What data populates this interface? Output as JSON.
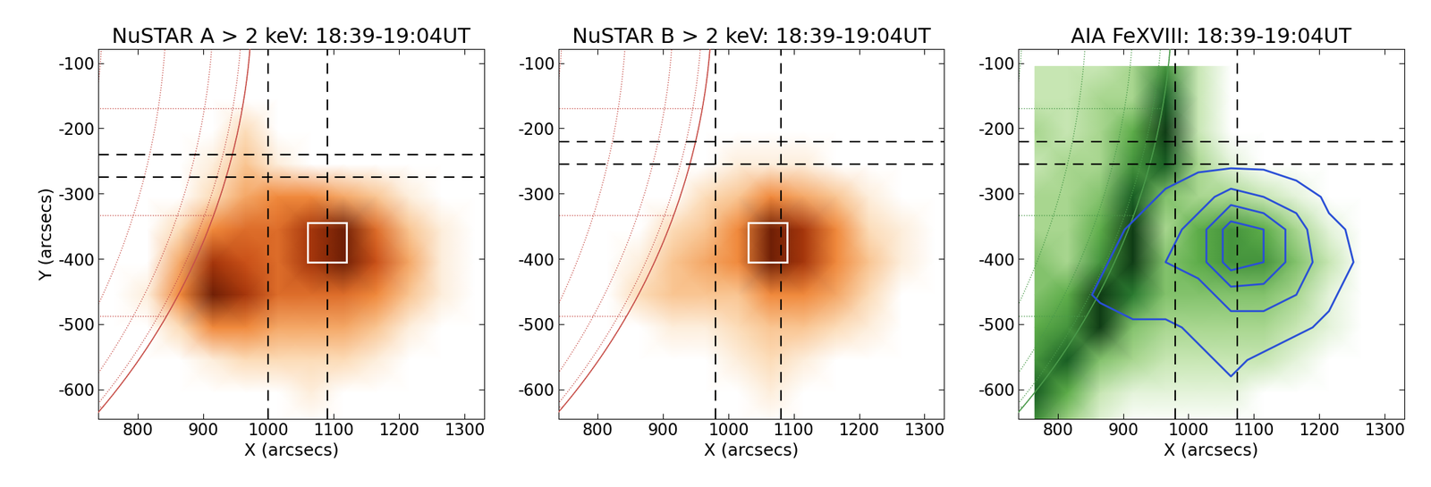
{
  "chart_data": [
    {
      "type": "image",
      "title": "NuSTAR A > 2 keV: 18:39-19:04UT",
      "x_label": "X (arcsecs)",
      "y_label": "Y (arcsecs)",
      "xlim": [
        740,
        1330
      ],
      "ylim": [
        -645,
        -78
      ],
      "xticks": [
        800,
        900,
        1000,
        1100,
        1200,
        1300
      ],
      "yticks": [
        -600,
        -500,
        -400,
        -300,
        -200,
        -100
      ],
      "x": [
        765,
        815,
        865,
        915,
        965,
        1015,
        1065,
        1115,
        1165,
        1215,
        1265,
        1315
      ],
      "y": [
        -105,
        -155,
        -205,
        -255,
        -305,
        -355,
        -405,
        -455,
        -505,
        -555,
        -605,
        -655
      ],
      "cells": [
        [
          0,
          0,
          0,
          0,
          0,
          0,
          0,
          0,
          0,
          0,
          0,
          0
        ],
        [
          0,
          0,
          0,
          0,
          0,
          0,
          0,
          0,
          0,
          0,
          0,
          0
        ],
        [
          0,
          0,
          0,
          0,
          2,
          0,
          0,
          0,
          0,
          0,
          0,
          0
        ],
        [
          0,
          0,
          0,
          1,
          3,
          1,
          0,
          0,
          0,
          0,
          0,
          0
        ],
        [
          0,
          0,
          0,
          2,
          4,
          5,
          5,
          4,
          3,
          1,
          0,
          0
        ],
        [
          0,
          0,
          2,
          5,
          6,
          6,
          8,
          9,
          6,
          3,
          1,
          0
        ],
        [
          0,
          0,
          4,
          8,
          7,
          6,
          8,
          9,
          7,
          4,
          1,
          0
        ],
        [
          0,
          1,
          5,
          9,
          8,
          6,
          6,
          6,
          5,
          3,
          1,
          0
        ],
        [
          0,
          0,
          2,
          5,
          5,
          4,
          4,
          4,
          3,
          1,
          0,
          0
        ],
        [
          0,
          0,
          0,
          1,
          2,
          2,
          2,
          2,
          1,
          0,
          0,
          0
        ],
        [
          0,
          0,
          0,
          0,
          0,
          0,
          1,
          0,
          0,
          0,
          0,
          0
        ],
        [
          0,
          0,
          0,
          0,
          0,
          0,
          0,
          0,
          0,
          0,
          0,
          0
        ]
      ],
      "clim": [
        0,
        10
      ],
      "colormap": [
        "#ffffff",
        "#fbd3a6",
        "#f08a3c",
        "#c0420f",
        "#3a0800"
      ],
      "solar_radius": 975,
      "grid": true,
      "grid_spacing": 10,
      "limb_color": "#c8504a",
      "crosshair_x": [
        1000,
        1090
      ],
      "crosshair_y": [
        -240,
        -275
      ],
      "box": {
        "x": [
          1060,
          1120
        ],
        "y": [
          -405,
          -345
        ],
        "color": "#ffffff"
      }
    },
    {
      "type": "image",
      "title": "NuSTAR B > 2 keV: 18:39-19:04UT",
      "x_label": "X (arcsecs)",
      "xlim": [
        740,
        1330
      ],
      "ylim": [
        -645,
        -78
      ],
      "xticks": [
        800,
        900,
        1000,
        1100,
        1200,
        1300
      ],
      "yticks": [
        -600,
        -500,
        -400,
        -300,
        -200,
        -100
      ],
      "x": [
        765,
        815,
        865,
        915,
        965,
        1015,
        1065,
        1115,
        1165,
        1215,
        1265,
        1315
      ],
      "y": [
        -105,
        -155,
        -205,
        -255,
        -305,
        -355,
        -405,
        -455,
        -505,
        -555,
        -605,
        -655
      ],
      "cells": [
        [
          0,
          0,
          0,
          0,
          0,
          0,
          0,
          0,
          0,
          0,
          0,
          0
        ],
        [
          0,
          0,
          0,
          0,
          0,
          0,
          0,
          0,
          0,
          0,
          0,
          0
        ],
        [
          0,
          0,
          0,
          0,
          0,
          0,
          0,
          0,
          0,
          0,
          0,
          0
        ],
        [
          0,
          0,
          0,
          0,
          0,
          1,
          1,
          1,
          0,
          0,
          0,
          0
        ],
        [
          0,
          0,
          0,
          0,
          2,
          3,
          5,
          4,
          3,
          1,
          0,
          0
        ],
        [
          0,
          0,
          0,
          2,
          3,
          5,
          9,
          8,
          5,
          2,
          1,
          0
        ],
        [
          0,
          0,
          1,
          3,
          4,
          5,
          9,
          8,
          5,
          3,
          1,
          0
        ],
        [
          0,
          0,
          2,
          3,
          3,
          3,
          5,
          5,
          4,
          2,
          0,
          0
        ],
        [
          0,
          0,
          0,
          1,
          1,
          2,
          3,
          3,
          2,
          1,
          0,
          0
        ],
        [
          0,
          0,
          0,
          0,
          0,
          1,
          2,
          1,
          0,
          0,
          0,
          0
        ],
        [
          0,
          0,
          0,
          0,
          0,
          0,
          1,
          0,
          0,
          0,
          0,
          0
        ],
        [
          0,
          0,
          0,
          0,
          0,
          0,
          0,
          0,
          0,
          0,
          0,
          0
        ]
      ],
      "clim": [
        0,
        10
      ],
      "colormap": [
        "#ffffff",
        "#fbd3a6",
        "#f08a3c",
        "#c0420f",
        "#3a0800"
      ],
      "solar_radius": 975,
      "grid": true,
      "grid_spacing": 10,
      "limb_color": "#c8504a",
      "crosshair_x": [
        980,
        1080
      ],
      "crosshair_y": [
        -220,
        -255
      ],
      "box": {
        "x": [
          1030,
          1090
        ],
        "y": [
          -405,
          -345
        ],
        "color": "#ffffff"
      }
    },
    {
      "type": "image",
      "title": "AIA FeXVIII: 18:39-19:04UT",
      "x_label": "X (arcsecs)",
      "xlim": [
        740,
        1330
      ],
      "ylim": [
        -645,
        -78
      ],
      "xticks": [
        800,
        900,
        1000,
        1100,
        1200,
        1300
      ],
      "yticks": [
        -600,
        -500,
        -400,
        -300,
        -200,
        -100
      ],
      "x": [
        765,
        815,
        865,
        915,
        965,
        1015,
        1065,
        1115,
        1165,
        1215,
        1265,
        1315
      ],
      "y": [
        -105,
        -155,
        -205,
        -255,
        -305,
        -355,
        -405,
        -455,
        -505,
        -555,
        -605,
        -655
      ],
      "cells": [
        [
          2,
          2,
          2,
          3,
          6,
          2,
          0,
          0,
          0,
          0,
          0,
          0
        ],
        [
          2,
          2,
          3,
          3,
          8,
          2,
          0,
          0,
          0,
          0,
          0,
          0
        ],
        [
          3,
          2,
          3,
          5,
          9,
          2,
          0,
          0,
          0,
          0,
          0,
          0
        ],
        [
          2,
          3,
          3,
          6,
          8,
          3,
          1,
          0,
          0,
          0,
          0,
          0
        ],
        [
          3,
          3,
          4,
          8,
          4,
          3,
          3,
          2,
          1,
          0,
          0,
          0
        ],
        [
          3,
          3,
          5,
          9,
          3,
          5,
          6,
          5,
          3,
          1,
          0,
          0
        ],
        [
          4,
          3,
          6,
          9,
          4,
          5,
          6,
          6,
          4,
          2,
          0,
          0
        ],
        [
          4,
          5,
          9,
          7,
          4,
          4,
          4,
          4,
          3,
          1,
          0,
          0
        ],
        [
          5,
          6,
          9,
          4,
          3,
          3,
          3,
          3,
          2,
          1,
          0,
          0
        ],
        [
          6,
          8,
          4,
          3,
          2,
          2,
          2,
          2,
          1,
          0,
          0,
          0
        ],
        [
          8,
          5,
          2,
          1,
          1,
          1,
          1,
          0,
          0,
          0,
          0,
          0
        ],
        [
          6,
          3,
          1,
          0,
          0,
          0,
          0,
          0,
          0,
          0,
          0,
          0
        ]
      ],
      "clim": [
        0,
        10
      ],
      "colormap": [
        "#ffffff",
        "#b9e0a0",
        "#5fae4a",
        "#1d6e2a",
        "#061a08"
      ],
      "solar_radius": 975,
      "grid": true,
      "grid_spacing": 10,
      "limb_color": "#4a9a4a",
      "crosshair_x": [
        980,
        1075
      ],
      "crosshair_y": [
        -220,
        -255
      ],
      "contours": {
        "levels": [
          1.5,
          4,
          6,
          8
        ],
        "color": "#2a4fd6"
      }
    }
  ]
}
